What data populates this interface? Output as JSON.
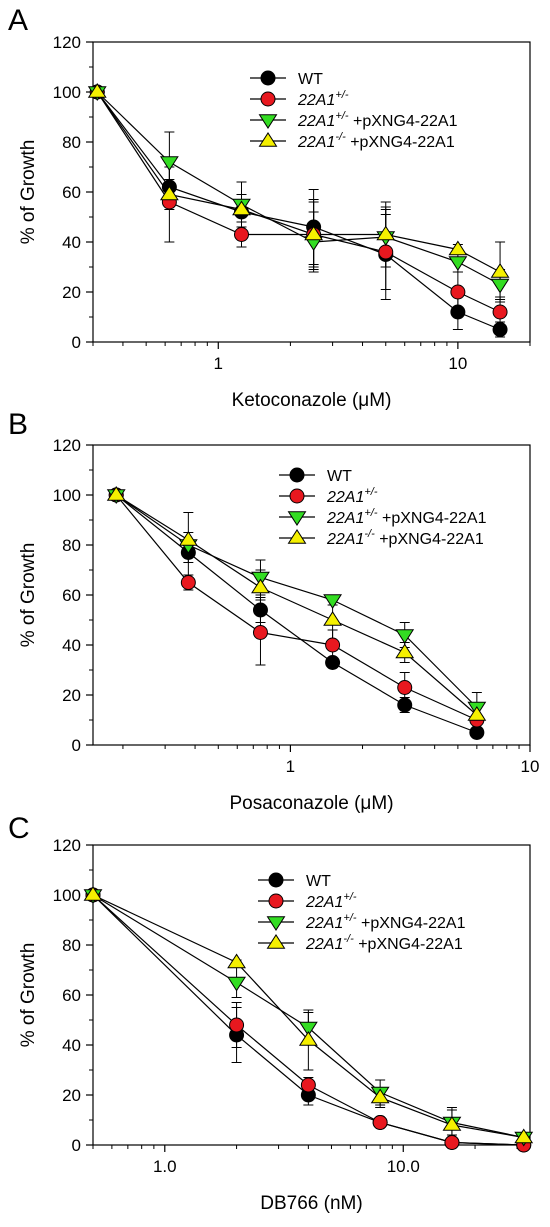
{
  "legend_note": "Superscripts rendered as trailing text",
  "colors": {
    "WT": "#000000",
    "22A1+/-": "#e8181f",
    "22A1+/- +pXNG4-22A1": "#33dd22",
    "22A1-/- +pXNG4-22A1": "#f5f000"
  },
  "chart_data": [
    {
      "panel": "A",
      "type": "line",
      "xscale": "log",
      "xlabel": "Ketoconazole (μM)",
      "ylabel": "% of Growth",
      "xlim": [
        0.3,
        20
      ],
      "ylim": [
        0,
        120
      ],
      "xticks": [
        {
          "value": 1,
          "label": "1"
        },
        {
          "value": 10,
          "label": "10"
        }
      ],
      "yticks": [
        0,
        20,
        40,
        60,
        80,
        100,
        120
      ],
      "legend": [
        {
          "label": "WT",
          "sup": "",
          "suffix": "",
          "marker": "circle",
          "color": "#000000"
        },
        {
          "label": "22A1",
          "sup": "+/-",
          "suffix": "",
          "marker": "circle",
          "color": "#e8181f"
        },
        {
          "label": "22A1",
          "sup": "+/-",
          "suffix": " +pXNG4-22A1",
          "marker": "tri-down",
          "color": "#33dd22"
        },
        {
          "label": "22A1",
          "sup": "-/-",
          "suffix": " +pXNG4-22A1",
          "marker": "tri-up",
          "color": "#f5f000"
        }
      ],
      "series": [
        {
          "name": "WT",
          "marker": "circle",
          "color": "#000000",
          "x": [
            0.3125,
            0.625,
            1.25,
            2.5,
            5,
            10,
            15
          ],
          "y": [
            100,
            62,
            52,
            46,
            35,
            12,
            5
          ],
          "err": [
            0,
            8,
            7,
            15,
            18,
            7,
            3
          ]
        },
        {
          "name": "22A1+/-",
          "marker": "circle",
          "color": "#e8181f",
          "x": [
            0.3125,
            0.625,
            1.25,
            2.5,
            5,
            10,
            15
          ],
          "y": [
            100,
            56,
            43,
            43,
            36,
            20,
            12
          ],
          "err": [
            0,
            16,
            5,
            13,
            15,
            8,
            6
          ]
        },
        {
          "name": "22A1+/- +pXNG4-22A1",
          "marker": "tri-down",
          "color": "#33dd22",
          "x": [
            0.3125,
            0.625,
            1.25,
            2.5,
            5,
            10,
            15
          ],
          "y": [
            100,
            72,
            55,
            40,
            42,
            32,
            23
          ],
          "err": [
            0,
            12,
            9,
            12,
            12,
            4,
            6
          ]
        },
        {
          "name": "22A1-/- +pXNG4-22A1",
          "marker": "tri-up",
          "color": "#f5f000",
          "x": [
            0.3125,
            0.625,
            1.25,
            2.5,
            5,
            10,
            15
          ],
          "y": [
            100,
            59,
            53,
            43,
            43,
            37,
            28
          ],
          "err": [
            0,
            6,
            11,
            14,
            13,
            2,
            12
          ]
        }
      ]
    },
    {
      "panel": "B",
      "type": "line",
      "xscale": "log",
      "xlabel": "Posaconazole (μM)",
      "ylabel": "% of Growth",
      "xlim": [
        0.15,
        10
      ],
      "ylim": [
        0,
        120
      ],
      "xticks": [
        {
          "value": 1,
          "label": "1"
        },
        {
          "value": 10,
          "label": "10"
        }
      ],
      "yticks": [
        0,
        20,
        40,
        60,
        80,
        100,
        120
      ],
      "legend": [
        {
          "label": "WT",
          "sup": "",
          "suffix": "",
          "marker": "circle",
          "color": "#000000"
        },
        {
          "label": "22A1",
          "sup": "+/-",
          "suffix": "",
          "marker": "circle",
          "color": "#e8181f"
        },
        {
          "label": "22A1",
          "sup": "+/-",
          "suffix": " +pXNG4-22A1",
          "marker": "tri-down",
          "color": "#33dd22"
        },
        {
          "label": "22A1",
          "sup": "-/-",
          "suffix": " +pXNG4-22A1",
          "marker": "tri-up",
          "color": "#f5f000"
        }
      ],
      "series": [
        {
          "name": "WT",
          "marker": "circle",
          "color": "#000000",
          "x": [
            0.1875,
            0.375,
            0.75,
            1.5,
            3,
            6
          ],
          "y": [
            100,
            77,
            54,
            33,
            16,
            5
          ],
          "err": [
            0,
            4,
            5,
            2,
            3,
            2
          ]
        },
        {
          "name": "22A1+/-",
          "marker": "circle",
          "color": "#e8181f",
          "x": [
            0.1875,
            0.375,
            0.75,
            1.5,
            3,
            6
          ],
          "y": [
            100,
            65,
            45,
            40,
            23,
            10
          ],
          "err": [
            0,
            3,
            13,
            6,
            6,
            6
          ]
        },
        {
          "name": "22A1+/- +pXNG4-22A1",
          "marker": "tri-down",
          "color": "#33dd22",
          "x": [
            0.1875,
            0.375,
            0.75,
            1.5,
            3,
            6
          ],
          "y": [
            100,
            80,
            67,
            58,
            44,
            15
          ],
          "err": [
            0,
            13,
            7,
            2,
            5,
            6
          ]
        },
        {
          "name": "22A1-/- +pXNG4-22A1",
          "marker": "tri-up",
          "color": "#f5f000",
          "x": [
            0.1875,
            0.375,
            0.75,
            1.5,
            3,
            6
          ],
          "y": [
            100,
            82,
            63,
            50,
            37,
            12
          ],
          "err": [
            0,
            3,
            7,
            10,
            4,
            4
          ]
        }
      ]
    },
    {
      "panel": "C",
      "type": "line",
      "xscale": "log",
      "xlabel": "DB766 (nM)",
      "ylabel": "% of Growth",
      "xlim": [
        0.5,
        34
      ],
      "ylim": [
        0,
        120
      ],
      "xticks": [
        {
          "value": 1,
          "label": "1.0"
        },
        {
          "value": 10,
          "label": "10.0"
        }
      ],
      "yticks": [
        0,
        20,
        40,
        60,
        80,
        100,
        120
      ],
      "legend": [
        {
          "label": "WT",
          "sup": "",
          "suffix": "",
          "marker": "circle",
          "color": "#000000"
        },
        {
          "label": "22A1",
          "sup": "+/-",
          "suffix": "",
          "marker": "circle",
          "color": "#e8181f"
        },
        {
          "label": "22A1",
          "sup": "+/-",
          "suffix": " +pXNG4-22A1",
          "marker": "tri-down",
          "color": "#33dd22"
        },
        {
          "label": "22A1",
          "sup": "-/-",
          "suffix": " +pXNG4-22A1",
          "marker": "tri-up",
          "color": "#f5f000"
        }
      ],
      "series": [
        {
          "name": "WT",
          "marker": "circle",
          "color": "#000000",
          "x": [
            0.5,
            2,
            4,
            8,
            16,
            32
          ],
          "y": [
            100,
            44,
            20,
            9,
            1,
            0
          ],
          "err": [
            0,
            11,
            4,
            1,
            1,
            0
          ]
        },
        {
          "name": "22A1+/-",
          "marker": "circle",
          "color": "#e8181f",
          "x": [
            0.5,
            2,
            4,
            8,
            16,
            32
          ],
          "y": [
            100,
            48,
            24,
            9,
            1,
            0
          ],
          "err": [
            0,
            9,
            3,
            1,
            1,
            0
          ]
        },
        {
          "name": "22A1+/- +pXNG4-22A1",
          "marker": "tri-down",
          "color": "#33dd22",
          "x": [
            0.5,
            2,
            4,
            8,
            16,
            32
          ],
          "y": [
            100,
            65,
            47,
            21,
            9,
            3
          ],
          "err": [
            0,
            6,
            6,
            5,
            5,
            1
          ]
        },
        {
          "name": "22A1-/- +pXNG4-22A1",
          "marker": "tri-up",
          "color": "#f5f000",
          "x": [
            0.5,
            2,
            4,
            8,
            16,
            32
          ],
          "y": [
            100,
            73,
            42,
            19,
            8,
            3
          ],
          "err": [
            0,
            1,
            12,
            4,
            7,
            1
          ]
        }
      ]
    }
  ]
}
